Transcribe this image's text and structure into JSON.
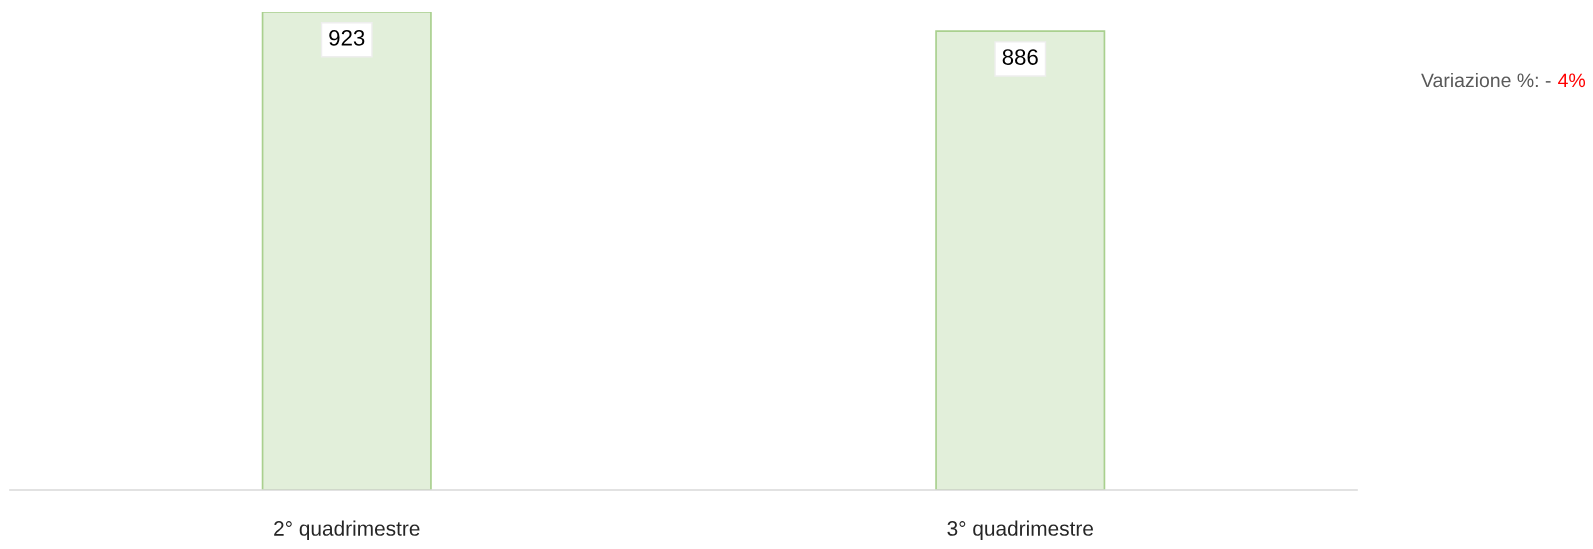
{
  "chart_data": {
    "type": "bar",
    "categories": [
      "2° quadrimestre",
      "3° quadrimestre"
    ],
    "values": [
      923,
      886
    ],
    "color": "#e2efda",
    "data_labels": true,
    "grid": false,
    "legend": false,
    "tick_labels": "x",
    "annotations": [
      "Variazione %: - ",
      "4%"
    ]
  }
}
